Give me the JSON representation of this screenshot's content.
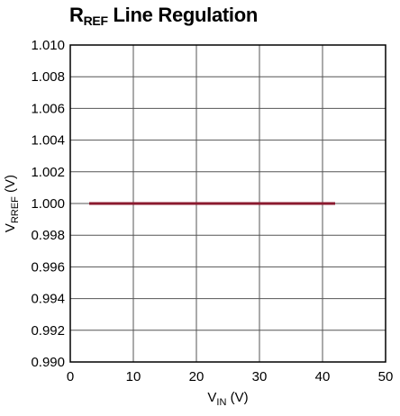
{
  "chart_data": {
    "type": "line",
    "title": {
      "main": "R",
      "sub": "REF",
      "rest": " Line Regulation"
    },
    "xlabel": {
      "main": "V",
      "sub": "IN",
      "rest": " (V)"
    },
    "ylabel": {
      "main": "V",
      "sub": "RREF",
      "rest": " (V)"
    },
    "xlim": [
      0,
      50
    ],
    "ylim": [
      0.99,
      1.01
    ],
    "xticks": [
      0,
      10,
      20,
      30,
      40,
      50
    ],
    "yticks": [
      0.99,
      0.992,
      0.994,
      0.996,
      0.998,
      1.0,
      1.002,
      1.004,
      1.006,
      1.008,
      1.01
    ],
    "xtick_labels": [
      "0",
      "10",
      "20",
      "30",
      "40",
      "50"
    ],
    "ytick_labels": [
      "0.990",
      "0.992",
      "0.994",
      "0.996",
      "0.998",
      "1.000",
      "1.002",
      "1.004",
      "1.006",
      "1.008",
      "1.010"
    ],
    "grid": true,
    "series": [
      {
        "color": "#8b1a2f",
        "x": [
          3,
          42
        ],
        "y": [
          1.0,
          1.0
        ]
      }
    ]
  }
}
